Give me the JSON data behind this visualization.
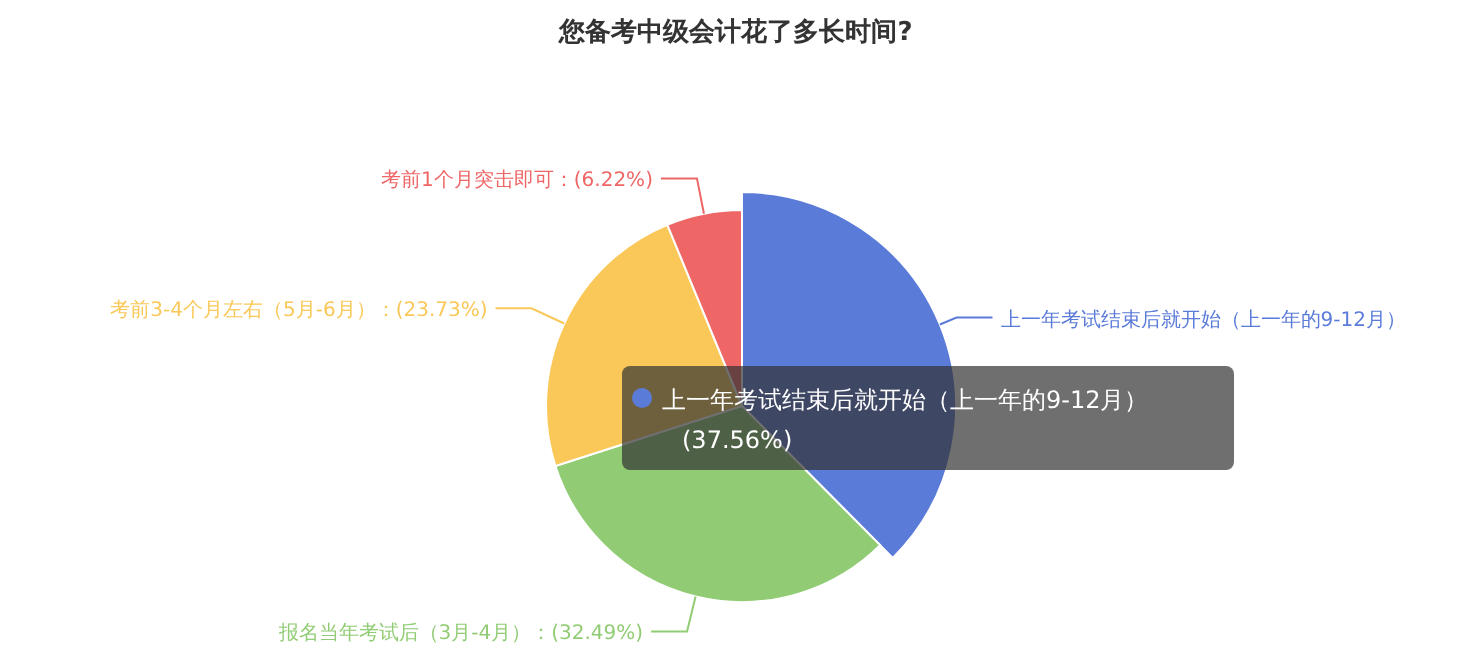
{
  "chart_data": {
    "type": "pie",
    "title": "您备考中级会计花了多长时间?",
    "categories": [
      "上一年考试结束后就开始（上一年的9-12月）",
      "报名当年考试后（3月-4月）",
      "考前3-4个月左右（5月-6月）",
      "考前1个月突击即可"
    ],
    "values": [
      37.56,
      32.49,
      23.73,
      6.22
    ],
    "colors": [
      "#5b7bd9",
      "#91cc75",
      "#fac858",
      "#ee6666"
    ],
    "value_labels": [
      null,
      "(32.49%)",
      "(23.73%)",
      "(6.22%)"
    ],
    "annotations": [
      "上一年考试结束后就开始（上一年的9-12月）",
      "(37.56%)"
    ]
  }
}
